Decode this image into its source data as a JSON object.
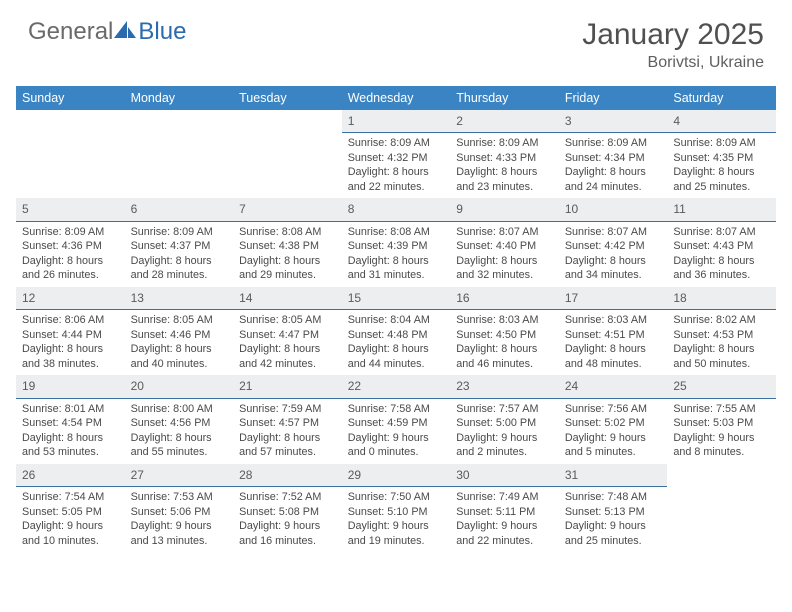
{
  "brand": {
    "part1": "General",
    "part2": "Blue"
  },
  "title": "January 2025",
  "location": "Borivtsi, Ukraine",
  "colors": {
    "header_bg": "#3b84c4",
    "header_text": "#ffffff",
    "daynum_bg": "#eceef0",
    "daynum_border": "#3b6fa0",
    "body_text": "#4a4a4a",
    "title_text": "#505050",
    "brand_gray": "#6a6a6a",
    "brand_blue": "#2a6bb0",
    "page_bg": "#ffffff"
  },
  "weekdays": [
    "Sunday",
    "Monday",
    "Tuesday",
    "Wednesday",
    "Thursday",
    "Friday",
    "Saturday"
  ],
  "weeks": [
    [
      {
        "n": "",
        "sr": "",
        "ss": "",
        "dl": ""
      },
      {
        "n": "",
        "sr": "",
        "ss": "",
        "dl": ""
      },
      {
        "n": "",
        "sr": "",
        "ss": "",
        "dl": ""
      },
      {
        "n": "1",
        "sr": "8:09 AM",
        "ss": "4:32 PM",
        "dl": "8 hours and 22 minutes."
      },
      {
        "n": "2",
        "sr": "8:09 AM",
        "ss": "4:33 PM",
        "dl": "8 hours and 23 minutes."
      },
      {
        "n": "3",
        "sr": "8:09 AM",
        "ss": "4:34 PM",
        "dl": "8 hours and 24 minutes."
      },
      {
        "n": "4",
        "sr": "8:09 AM",
        "ss": "4:35 PM",
        "dl": "8 hours and 25 minutes."
      }
    ],
    [
      {
        "n": "5",
        "sr": "8:09 AM",
        "ss": "4:36 PM",
        "dl": "8 hours and 26 minutes."
      },
      {
        "n": "6",
        "sr": "8:09 AM",
        "ss": "4:37 PM",
        "dl": "8 hours and 28 minutes."
      },
      {
        "n": "7",
        "sr": "8:08 AM",
        "ss": "4:38 PM",
        "dl": "8 hours and 29 minutes."
      },
      {
        "n": "8",
        "sr": "8:08 AM",
        "ss": "4:39 PM",
        "dl": "8 hours and 31 minutes."
      },
      {
        "n": "9",
        "sr": "8:07 AM",
        "ss": "4:40 PM",
        "dl": "8 hours and 32 minutes."
      },
      {
        "n": "10",
        "sr": "8:07 AM",
        "ss": "4:42 PM",
        "dl": "8 hours and 34 minutes."
      },
      {
        "n": "11",
        "sr": "8:07 AM",
        "ss": "4:43 PM",
        "dl": "8 hours and 36 minutes."
      }
    ],
    [
      {
        "n": "12",
        "sr": "8:06 AM",
        "ss": "4:44 PM",
        "dl": "8 hours and 38 minutes."
      },
      {
        "n": "13",
        "sr": "8:05 AM",
        "ss": "4:46 PM",
        "dl": "8 hours and 40 minutes."
      },
      {
        "n": "14",
        "sr": "8:05 AM",
        "ss": "4:47 PM",
        "dl": "8 hours and 42 minutes."
      },
      {
        "n": "15",
        "sr": "8:04 AM",
        "ss": "4:48 PM",
        "dl": "8 hours and 44 minutes."
      },
      {
        "n": "16",
        "sr": "8:03 AM",
        "ss": "4:50 PM",
        "dl": "8 hours and 46 minutes."
      },
      {
        "n": "17",
        "sr": "8:03 AM",
        "ss": "4:51 PM",
        "dl": "8 hours and 48 minutes."
      },
      {
        "n": "18",
        "sr": "8:02 AM",
        "ss": "4:53 PM",
        "dl": "8 hours and 50 minutes."
      }
    ],
    [
      {
        "n": "19",
        "sr": "8:01 AM",
        "ss": "4:54 PM",
        "dl": "8 hours and 53 minutes."
      },
      {
        "n": "20",
        "sr": "8:00 AM",
        "ss": "4:56 PM",
        "dl": "8 hours and 55 minutes."
      },
      {
        "n": "21",
        "sr": "7:59 AM",
        "ss": "4:57 PM",
        "dl": "8 hours and 57 minutes."
      },
      {
        "n": "22",
        "sr": "7:58 AM",
        "ss": "4:59 PM",
        "dl": "9 hours and 0 minutes."
      },
      {
        "n": "23",
        "sr": "7:57 AM",
        "ss": "5:00 PM",
        "dl": "9 hours and 2 minutes."
      },
      {
        "n": "24",
        "sr": "7:56 AM",
        "ss": "5:02 PM",
        "dl": "9 hours and 5 minutes."
      },
      {
        "n": "25",
        "sr": "7:55 AM",
        "ss": "5:03 PM",
        "dl": "9 hours and 8 minutes."
      }
    ],
    [
      {
        "n": "26",
        "sr": "7:54 AM",
        "ss": "5:05 PM",
        "dl": "9 hours and 10 minutes."
      },
      {
        "n": "27",
        "sr": "7:53 AM",
        "ss": "5:06 PM",
        "dl": "9 hours and 13 minutes."
      },
      {
        "n": "28",
        "sr": "7:52 AM",
        "ss": "5:08 PM",
        "dl": "9 hours and 16 minutes."
      },
      {
        "n": "29",
        "sr": "7:50 AM",
        "ss": "5:10 PM",
        "dl": "9 hours and 19 minutes."
      },
      {
        "n": "30",
        "sr": "7:49 AM",
        "ss": "5:11 PM",
        "dl": "9 hours and 22 minutes."
      },
      {
        "n": "31",
        "sr": "7:48 AM",
        "ss": "5:13 PM",
        "dl": "9 hours and 25 minutes."
      },
      {
        "n": "",
        "sr": "",
        "ss": "",
        "dl": ""
      }
    ]
  ],
  "labels": {
    "sunrise": "Sunrise:",
    "sunset": "Sunset:",
    "daylight": "Daylight:"
  }
}
